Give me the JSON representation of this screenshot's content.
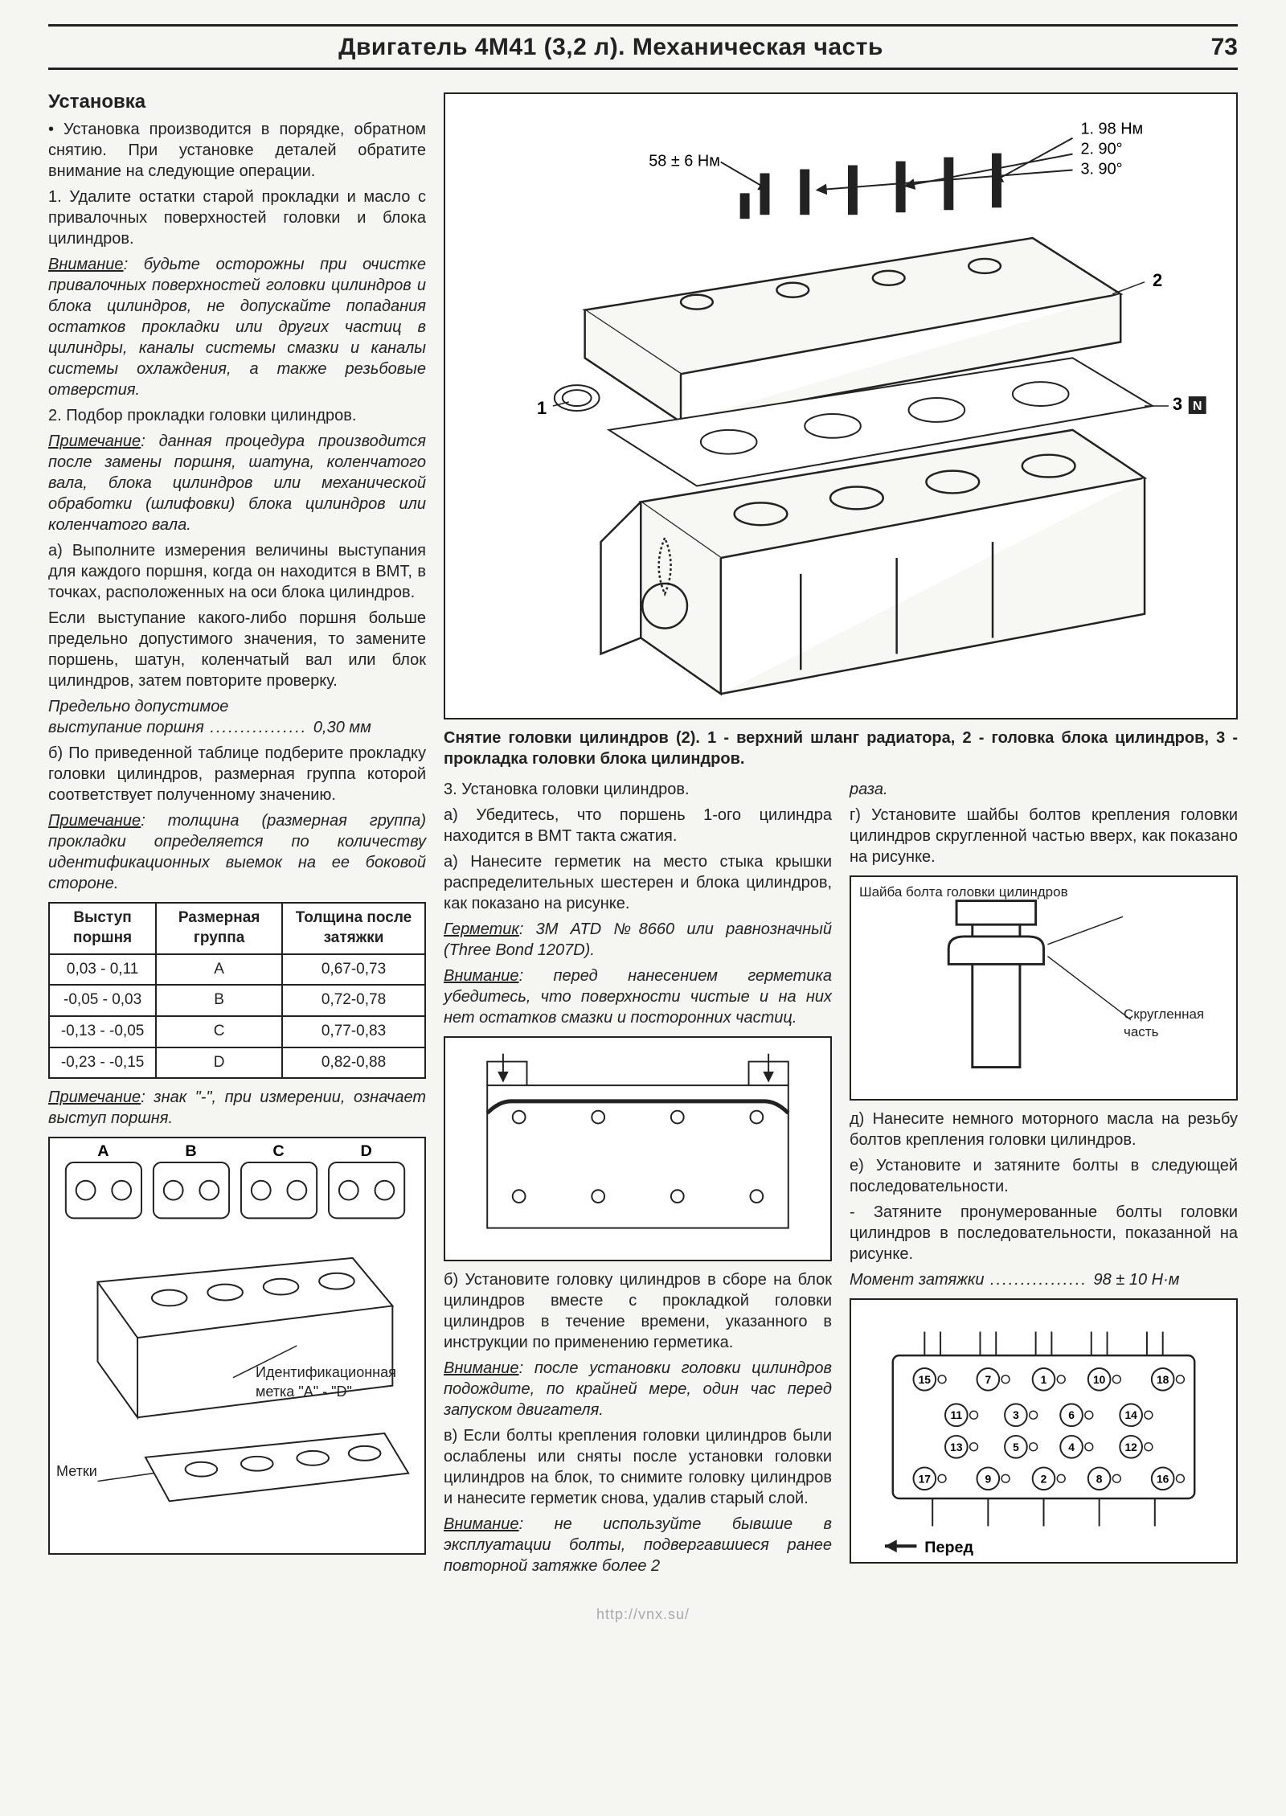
{
  "page": {
    "title": "Двигатель 4М41 (3,2 л). Механическая часть",
    "number": "73"
  },
  "left": {
    "h": "Установка",
    "p1": "• Установка производится в порядке, обратном снятию. При установке деталей обратите внимание на следующие операции.",
    "p2": "1. Удалите остатки старой прокладки и масло с привалочных поверхностей головки и блока цилиндров.",
    "warn1_label": "Внимание",
    "warn1": ": будьте осторожны при очистке привалочных поверхностей головки цилиндров и блока цилиндров, не допускайте попадания остатков прокладки или других частиц в цилиндры, каналы системы смазки и каналы системы охлаждения, а также резьбовые отверстия.",
    "p3": "2. Подбор прокладки головки цилиндров.",
    "note1_label": "Примечание",
    "note1": ": данная процедура производится после замены поршня, шатуна, коленчатого вала, блока цилиндров или механической обработки (шлифовки) блока цилиндров или коленчатого вала.",
    "p4": "а) Выполните измерения величины выступания для каждого поршня, когда он находится в ВМТ, в точках, расположенных на оси блока цилиндров.",
    "p5": "Если выступание какого-либо поршня больше предельно допустимого значения, то замените поршень, шатун, коленчатый вал или блок цилиндров, затем повторите проверку.",
    "p6_a": "Предельно допустимое",
    "p6_b": "выступание поршня",
    "p6_val": "0,30 мм",
    "p7": "б) По приведенной таблице подберите прокладку головки цилиндров, размерная группа которой соответствует полученному значению.",
    "note2_label": "Примечание",
    "note2": ": толщина (размерная группа) прокладки определяется по количеству идентификационных выемок на ее боковой стороне.",
    "table": {
      "headers": [
        "Выступ поршня",
        "Размерная группа",
        "Толщина после затяжки"
      ],
      "rows": [
        [
          "0,03 - 0,11",
          "A",
          "0,67-0,73"
        ],
        [
          "-0,05 - 0,03",
          "B",
          "0,72-0,78"
        ],
        [
          "-0,13 - -0,05",
          "C",
          "0,77-0,83"
        ],
        [
          "-0,23 - -0,15",
          "D",
          "0,82-0,88"
        ]
      ]
    },
    "note3_label": "Примечание",
    "note3": ": знак \"-\", при измерении, означает выступ поршня.",
    "fig_bottom": {
      "labels_abcd": [
        "A",
        "B",
        "C",
        "D"
      ],
      "id_mark": "Идентификационная метка \"A\" - \"D\"",
      "marks": "Метки"
    }
  },
  "rightTop": {
    "torque1": "58 ± 6 Нм",
    "spec1": "1. 98 Нм",
    "spec2": "2. 90°",
    "spec3": "3. 90°",
    "callout1": "1",
    "callout2": "2",
    "callout3": "3",
    "caption": "Снятие головки цилиндров (2). 1 - верхний шланг радиатора, 2 - головка блока цилиндров, 3 - прокладка головки блока цилиндров."
  },
  "mid": {
    "p1": "3. Установка головки цилиндров.",
    "p2": "а) Убедитесь, что поршень 1-ого цилиндра находится в ВМТ такта сжатия.",
    "p3": "а) Нанесите герметик на место стыка крышки распределительных шестерен и блока цилиндров, как показано на рисунке.",
    "seal_label": "Герметик",
    "seal": ": 3М ATD №8660 или равнозначный (Three Bond 1207D).",
    "warn_label": "Внимание",
    "warn": ": перед нанесением герметика убедитесь, что поверхности чистые и на них нет остатков смазки и посторонних частиц.",
    "p4": "б) Установите головку цилиндров в сборе на блок цилиндров вместе с прокладкой головки цилиндров в течение времени, указанного в инструкции по применению герметика.",
    "warn2_label": "Внимание",
    "warn2": ": после установки головки цилиндров подождите, по крайней мере, один час перед запуском двигателя.",
    "p5": "в) Если болты крепления головки цилиндров были ослаблены или сняты после установки головки цилиндров на блок, то снимите головку цилиндров и нанесите герметик снова, удалив старый слой.",
    "warn3_label": "Внимание",
    "warn3": ": не используйте бывшие в эксплуатации болты, подвергавшиеся ранее повторной затяжке более 2"
  },
  "right": {
    "p_end": "раза.",
    "p1": "г) Установите шайбы болтов крепления головки цилиндров скругленной частью вверх, как показано на рисунке.",
    "fig_washer": {
      "label1": "Шайба болта головки цилиндров",
      "label2": "Скругленная часть"
    },
    "p2": "д) Нанесите немного моторного масла на резьбу болтов крепления головки цилиндров.",
    "p3": "е) Установите и затяните болты в следующей последовательности.",
    "p4": "- Затяните пронумерованные болты головки цилиндров в последовательности, показанной на рисунке.",
    "torque_label": "Момент затяжки",
    "torque_val": "98 ± 10 Н·м",
    "fig_seq": {
      "numbers_top": [
        "15",
        "7",
        "1",
        "10",
        "18"
      ],
      "numbers_mid1": [
        "11",
        "3",
        "6",
        "14"
      ],
      "numbers_mid2": [
        "13",
        "5",
        "4",
        "12"
      ],
      "numbers_bot": [
        "17",
        "9",
        "2",
        "8",
        "16"
      ],
      "front": "Перед"
    }
  },
  "footer": "http://vnx.su/"
}
